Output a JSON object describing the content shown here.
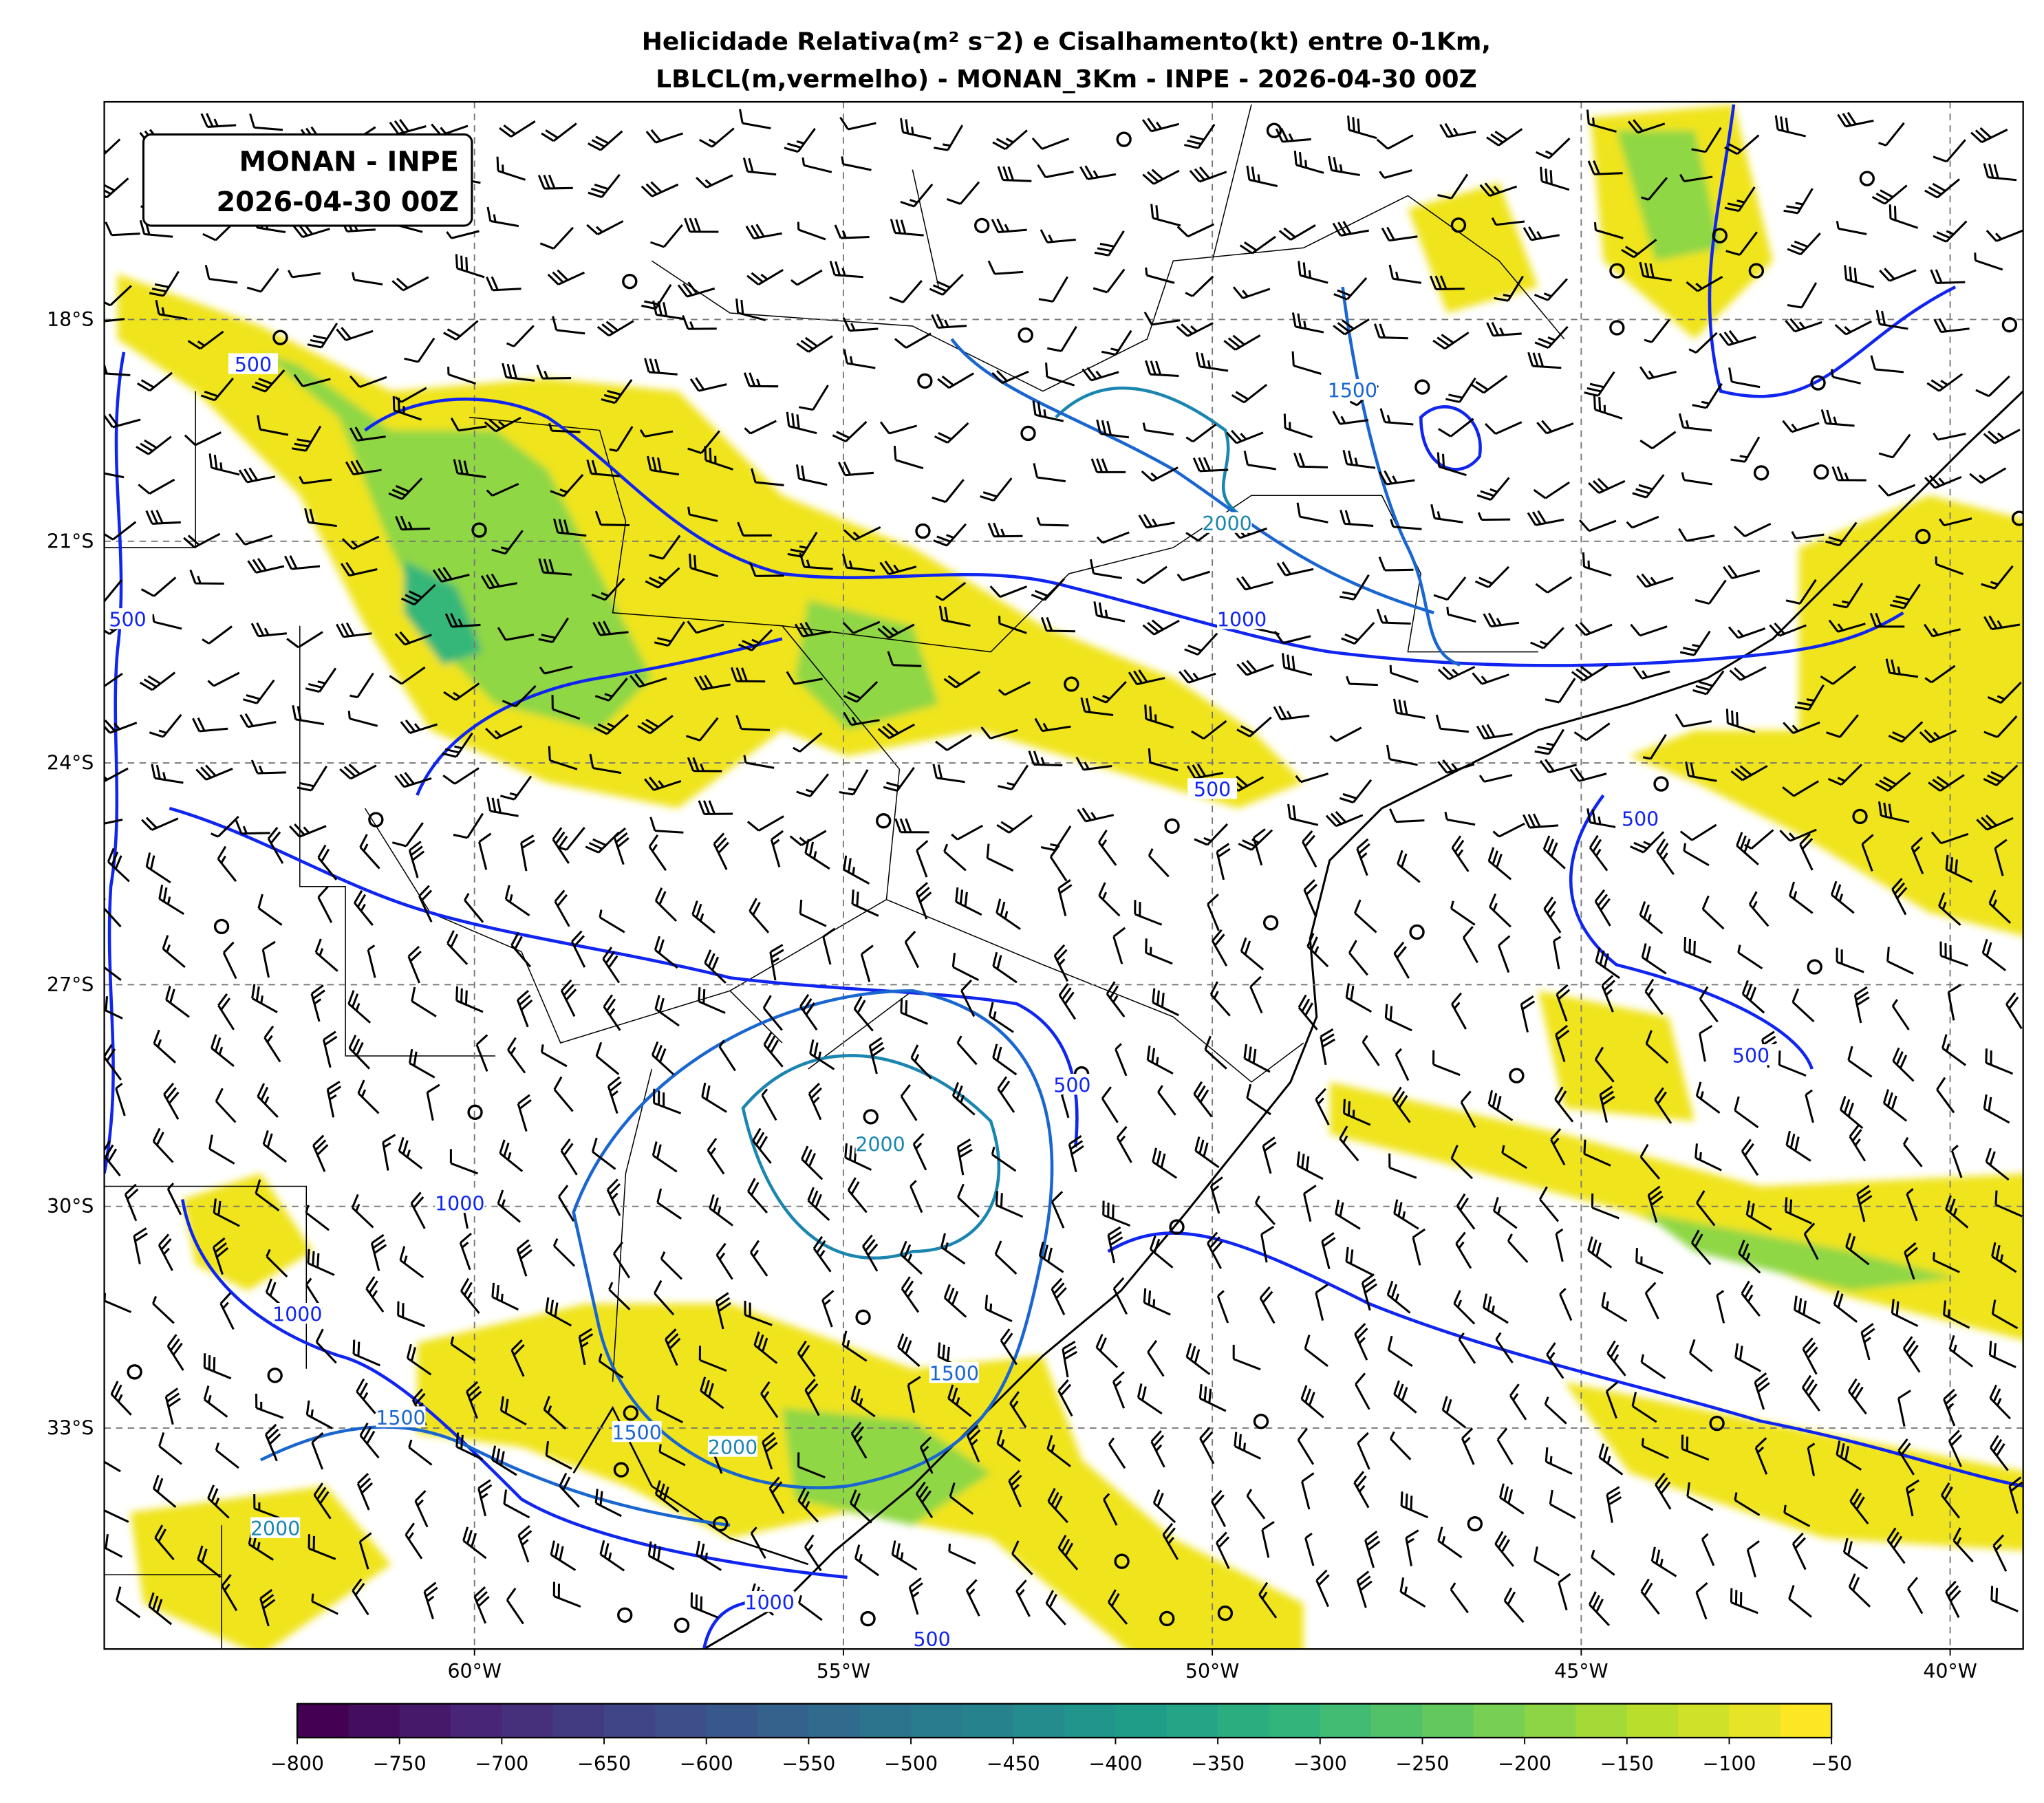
{
  "title": {
    "line1": "Helicidade Relativa(m² s⁻2) e Cisalhamento(kt) entre 0-1Km,",
    "line2": "LBLCL(m,vermelho) - MONAN_3Km - INPE - 2026-04-30 00Z"
  },
  "info_box": {
    "line1": "MONAN - INPE",
    "line2": "2026-04-30 00Z"
  },
  "map": {
    "lon_range": [
      -65,
      -39
    ],
    "lat_range": [
      -36,
      -15
    ],
    "gridlines": "dashed gray",
    "lon_ticks": [
      {
        "value": -60,
        "label": "60°W"
      },
      {
        "value": -55,
        "label": "55°W"
      },
      {
        "value": -50,
        "label": "50°W"
      },
      {
        "value": -45,
        "label": "45°W"
      },
      {
        "value": -40,
        "label": "40°W"
      }
    ],
    "lat_ticks": [
      {
        "value": -18,
        "label": "18°S"
      },
      {
        "value": -21,
        "label": "21°S"
      },
      {
        "value": -24,
        "label": "24°S"
      },
      {
        "value": -27,
        "label": "27°S"
      },
      {
        "value": -30,
        "label": "30°S"
      },
      {
        "value": -33,
        "label": "33°S"
      }
    ]
  },
  "colors": {
    "contour_low": "#1025f0",
    "contour_1500": "#1a66d0",
    "contour_2000": "#1a86b0",
    "helicity_weak": "#f0e41f",
    "helicity_mid": "#8fd744",
    "helicity_strong": "#35b779"
  },
  "colorbar": {
    "colormap": "viridis",
    "min": -800,
    "max": -50,
    "step": 25,
    "ticks": [
      "−800",
      "−750",
      "−700",
      "−650",
      "−600",
      "−550",
      "−500",
      "−450",
      "−400",
      "−350",
      "−300",
      "−250",
      "−200",
      "−150",
      "−100",
      "−50"
    ]
  },
  "contour_labels": [
    {
      "text": "500",
      "lon": -63.0,
      "lat": -18.65,
      "level": 500
    },
    {
      "text": "500",
      "lon": -64.7,
      "lat": -22.1,
      "level": 500
    },
    {
      "text": "1500",
      "lon": -48.1,
      "lat": -19.0,
      "level": 1500
    },
    {
      "text": "2000",
      "lon": -49.8,
      "lat": -20.8,
      "level": 2000
    },
    {
      "text": "1000",
      "lon": -49.6,
      "lat": -22.1,
      "level": 1000
    },
    {
      "text": "500",
      "lon": -50.0,
      "lat": -24.4,
      "level": 500
    },
    {
      "text": "500",
      "lon": -44.2,
      "lat": -24.8,
      "level": 500
    },
    {
      "text": "500",
      "lon": -42.7,
      "lat": -28.0,
      "level": 500
    },
    {
      "text": "500",
      "lon": -51.9,
      "lat": -28.4,
      "level": 500
    },
    {
      "text": "2000",
      "lon": -54.5,
      "lat": -29.2,
      "level": 2000
    },
    {
      "text": "1000",
      "lon": -60.2,
      "lat": -30.0,
      "level": 1000
    },
    {
      "text": "1000",
      "lon": -62.4,
      "lat": -31.5,
      "level": 1000
    },
    {
      "text": "1500",
      "lon": -61.0,
      "lat": -32.9,
      "level": 1500
    },
    {
      "text": "1500",
      "lon": -53.5,
      "lat": -32.3,
      "level": 1500
    },
    {
      "text": "1500",
      "lon": -57.8,
      "lat": -33.1,
      "level": 1500
    },
    {
      "text": "2000",
      "lon": -56.5,
      "lat": -33.3,
      "level": 2000
    },
    {
      "text": "2000",
      "lon": -62.7,
      "lat": -34.4,
      "level": 2000
    },
    {
      "text": "1000",
      "lon": -56.0,
      "lat": -35.4,
      "level": 1000
    },
    {
      "text": "500",
      "lon": -53.8,
      "lat": -35.9,
      "level": 500
    }
  ]
}
